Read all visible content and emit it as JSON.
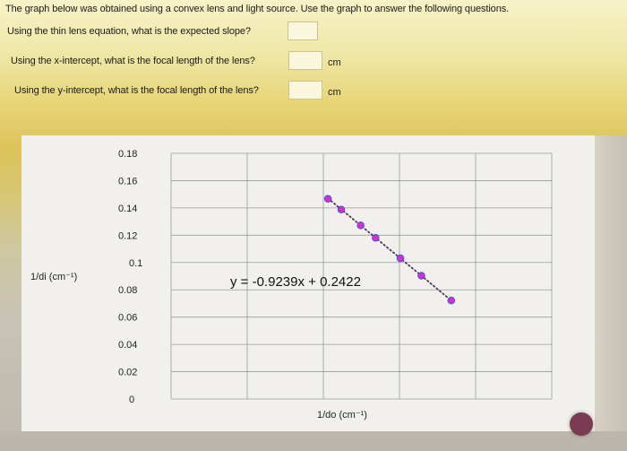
{
  "questions": {
    "intro": "The graph below was obtained using a convex lens and light source. Use the graph to answer the following questions.",
    "q1": "Using the thin lens equation, what is the expected slope?",
    "q2": "Using the x-intercept, what is the focal length of the lens?",
    "q2_unit": "cm",
    "q3": "Using the y-intercept, what is the focal length of the lens?",
    "q3_unit": "cm"
  },
  "chart_data": {
    "type": "scatter",
    "ylabel": "1/di (cm⁻¹)",
    "xlabel": "1/do (cm⁻¹)",
    "y_ticks": [
      "0.18",
      "0.16",
      "0.14",
      "0.12",
      "0.1",
      "0.08",
      "0.06",
      "0.04",
      "0.02",
      "0"
    ],
    "ylim": [
      0,
      0.18
    ],
    "grid": true,
    "trendline_equation": "y = -0.9239x + 0.2422",
    "trendline_style": "dotted",
    "marker_color": "#d62fd0",
    "points": [
      {
        "x": 0.103,
        "y": 0.1467
      },
      {
        "x": 0.1118,
        "y": 0.1388
      },
      {
        "x": 0.1245,
        "y": 0.1272
      },
      {
        "x": 0.1343,
        "y": 0.1181
      },
      {
        "x": 0.1506,
        "y": 0.1031
      },
      {
        "x": 0.1644,
        "y": 0.0903
      },
      {
        "x": 0.184,
        "y": 0.0722
      }
    ]
  },
  "colors": {
    "marker": "#d62fd0",
    "marker_edge": "#3b4fe0",
    "trendline": "#4b3b5b",
    "grid": "#9a9a9a"
  }
}
